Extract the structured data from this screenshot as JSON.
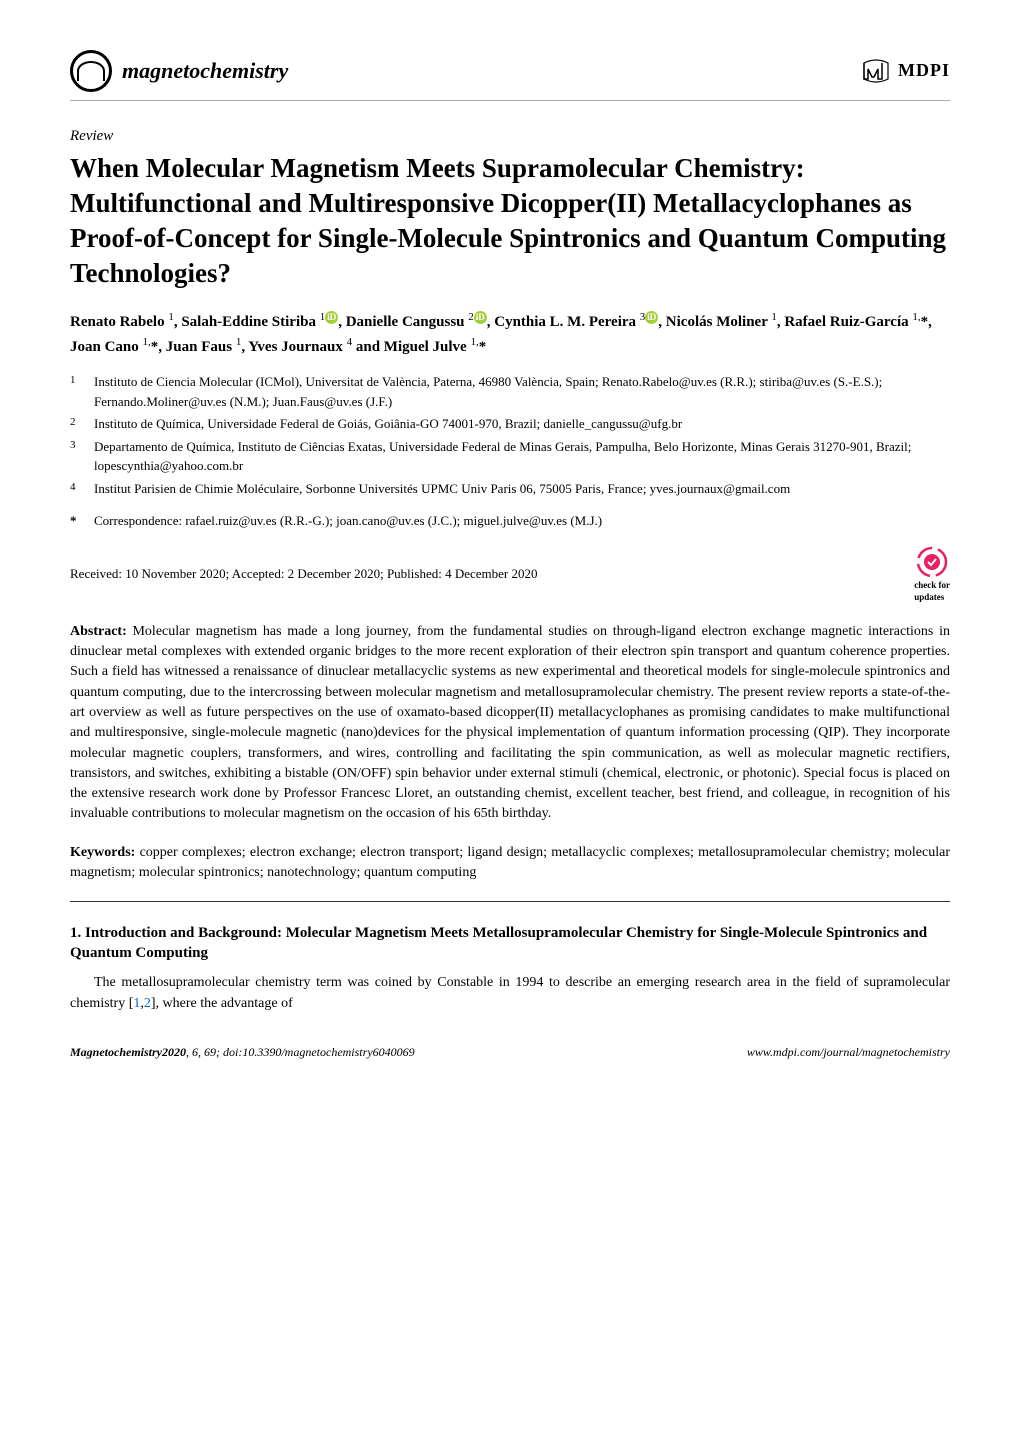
{
  "journal": {
    "name": "magnetochemistry",
    "publisher": "MDPI"
  },
  "article": {
    "type": "Review",
    "title": "When Molecular Magnetism Meets Supramolecular Chemistry: Multifunctional and Multiresponsive Dicopper(II) Metallacyclophanes as Proof-of-Concept for Single-Molecule Spintronics and Quantum Computing Technologies?",
    "authors_html": "Renato Rabelo <sup>1</sup>, Salah-Eddine Stiriba <sup>1</sup><span class=\"orcid\">iD</span>, Danielle Cangussu <sup>2</sup><span class=\"orcid\">iD</span>, Cynthia L. M. Pereira <sup>3</sup><span class=\"orcid\">iD</span>, Nicolás Moliner <sup>1</sup>, Rafael Ruiz-García <sup>1,</sup>*, Joan Cano <sup>1,</sup>*, Juan Faus <sup>1</sup>, Yves Journaux <sup>4</sup> and Miguel Julve <sup>1,</sup>*",
    "affiliations": [
      {
        "num": "1",
        "text": "Instituto de Ciencia Molecular (ICMol), Universitat de València, Paterna, 46980 València, Spain; Renato.Rabelo@uv.es (R.R.); stiriba@uv.es (S.-E.S.); Fernando.Moliner@uv.es (N.M.); Juan.Faus@uv.es (J.F.)"
      },
      {
        "num": "2",
        "text": "Instituto de Química, Universidade Federal de Goiás, Goiânia-GO 74001-970, Brazil; danielle_cangussu@ufg.br"
      },
      {
        "num": "3",
        "text": "Departamento de Química, Instituto de Ciências Exatas, Universidade Federal de Minas Gerais, Pampulha, Belo Horizonte, Minas Gerais 31270-901, Brazil; lopescynthia@yahoo.com.br"
      },
      {
        "num": "4",
        "text": "Institut Parisien de Chimie Moléculaire, Sorbonne Universités UPMC Univ Paris 06, 75005 Paris, France; yves.journaux@gmail.com"
      }
    ],
    "correspondence": "Correspondence: rafael.ruiz@uv.es (R.R.-G.); joan.cano@uv.es (J.C.); miguel.julve@uv.es (M.J.)",
    "dates": "Received: 10 November 2020; Accepted: 2 December 2020; Published: 4 December 2020",
    "check_updates": "check for updates",
    "abstract_label": "Abstract:",
    "abstract_text": " Molecular magnetism has made a long journey, from the fundamental studies on through-ligand electron exchange magnetic interactions in dinuclear metal complexes with extended organic bridges to the more recent exploration of their electron spin transport and quantum coherence properties. Such a field has witnessed a renaissance of dinuclear metallacyclic systems as new experimental and theoretical models for single-molecule spintronics and quantum computing, due to the intercrossing between molecular magnetism and metallosupramolecular chemistry. The present review reports a state-of-the-art overview as well as future perspectives on the use of oxamato-based dicopper(II) metallacyclophanes as promising candidates to make multifunctional and multiresponsive, single-molecule magnetic (nano)devices for the physical implementation of quantum information processing (QIP). They incorporate molecular magnetic couplers, transformers, and wires, controlling and facilitating the spin communication, as well as molecular magnetic rectifiers, transistors, and switches, exhibiting a bistable (ON/OFF) spin behavior under external stimuli (chemical, electronic, or photonic). Special focus is placed on the extensive research work done by Professor Francesc Lloret, an outstanding chemist, excellent teacher, best friend, and colleague, in recognition of his invaluable contributions to molecular magnetism on the occasion of his 65th birthday.",
    "keywords_label": "Keywords:",
    "keywords_text": " copper complexes; electron exchange; electron transport; ligand design; metallacyclic complexes; metallosupramolecular chemistry; molecular magnetism; molecular spintronics; nanotechnology; quantum computing",
    "section_heading": "1. Introduction and Background: Molecular Magnetism Meets Metallosupramolecular Chemistry for Single-Molecule Spintronics and Quantum Computing",
    "body_html": "The metallosupramolecular chemistry term was coined by Constable in 1994 to describe an emerging research area in the field of supramolecular chemistry [<span class=\"ref-link\">1</span>,<span class=\"ref-link\">2</span>], where the advantage of"
  },
  "footer": {
    "citation_journal": "Magnetochemistry",
    "citation_year": " 2020",
    "citation_rest": ", 6, 69; doi:10.3390/magnetochemistry6040069",
    "url": "www.mdpi.com/journal/magnetochemistry"
  },
  "colors": {
    "orcid_green": "#a6ce39",
    "ref_blue": "#0066cc",
    "updates_pink": "#e91e63"
  }
}
